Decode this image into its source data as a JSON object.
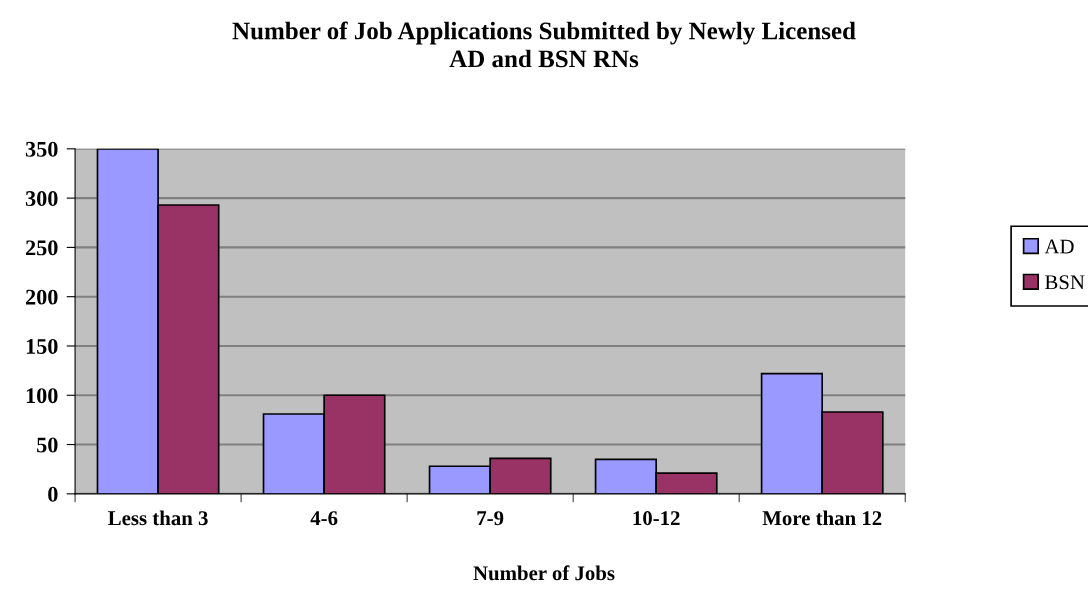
{
  "chart_data": {
    "type": "bar",
    "title": "Number of Job Applications Submitted by Newly Licensed\nAD and BSN RNs",
    "xlabel": "Number of Jobs",
    "categories": [
      "Less than 3",
      "4-6",
      "7-9",
      "10-12",
      "More than 12"
    ],
    "series": [
      {
        "name": "AD",
        "color": "#9999ff",
        "values": [
          350,
          81,
          28,
          35,
          122
        ]
      },
      {
        "name": "BSN",
        "color": "#993366",
        "values": [
          293,
          100,
          36,
          21,
          83
        ]
      }
    ],
    "ylim": [
      0,
      350
    ],
    "yticks": [
      0,
      50,
      100,
      150,
      200,
      250,
      300,
      350
    ],
    "grid": "y",
    "legend": "right"
  }
}
